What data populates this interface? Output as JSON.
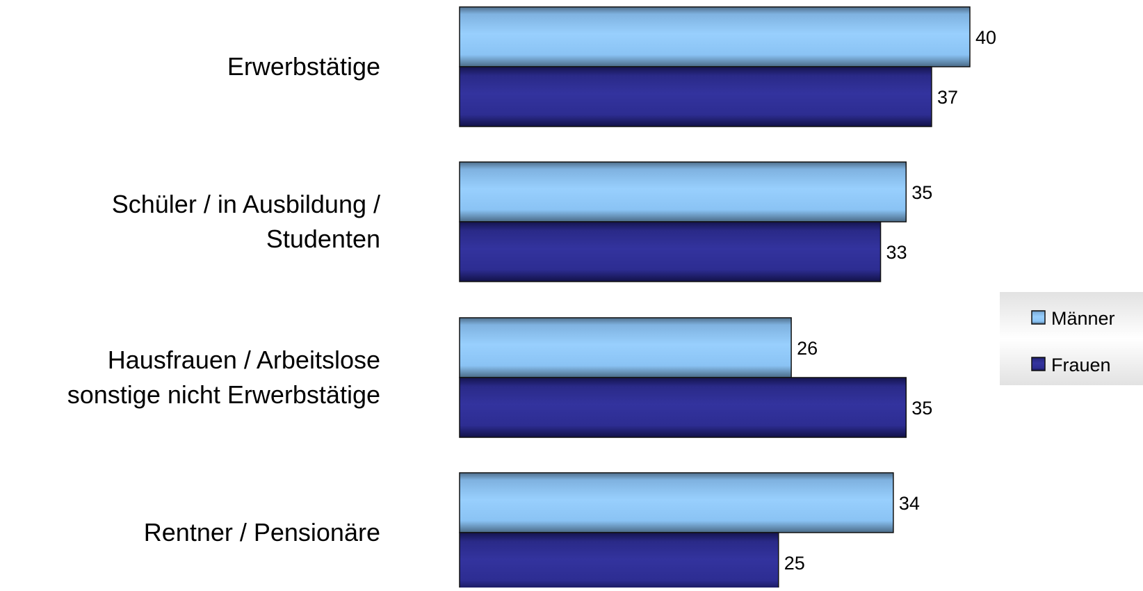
{
  "chart_data": {
    "type": "bar",
    "orientation": "horizontal",
    "categories": [
      [
        "Erwerbstätige"
      ],
      [
        "Schüler / in Ausbildung /",
        "Studenten"
      ],
      [
        "Hausfrauen / Arbeitslose",
        "sonstige nicht Erwerbstätige"
      ],
      [
        "Rentner / Pensionäre"
      ]
    ],
    "series": [
      {
        "name": "Männer",
        "values": [
          40,
          35,
          26,
          34
        ],
        "color": "#8ec8fb"
      },
      {
        "name": "Frauen",
        "values": [
          37,
          33,
          35,
          25
        ],
        "color": "#2e2e96"
      }
    ],
    "xlim": [
      0,
      40
    ],
    "grid": false,
    "legend": "right",
    "title": "",
    "xlabel": "",
    "ylabel": ""
  }
}
